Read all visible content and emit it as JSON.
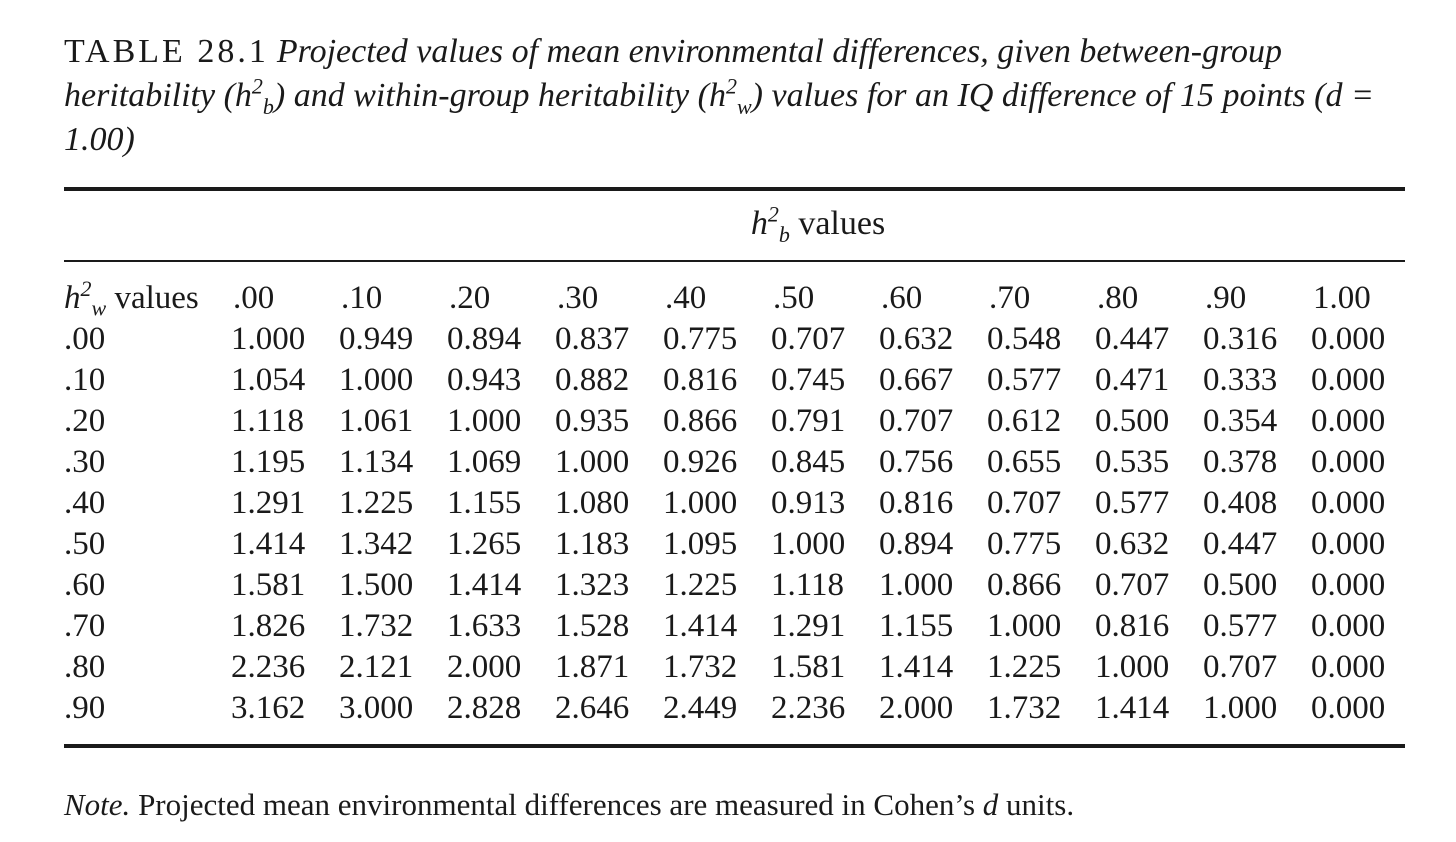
{
  "caption": {
    "label": "TABLE 28.1",
    "text_part1": "Projected values of mean environmental differences, given between-group heritability (",
    "hb_base": "h",
    "hb_sup": "2",
    "hb_sub": "b",
    "text_part2": ") and within-group heritability (",
    "hw_base": "h",
    "hw_sup": "2",
    "hw_sub": "w",
    "text_part3": ") values for an IQ difference of 15 points (d = 1.00)"
  },
  "spanner": {
    "sym_base": "h",
    "sym_sup": "2",
    "sym_sub": "b",
    "text": " values"
  },
  "stub_header": {
    "sym_base": "h",
    "sym_sup": "2",
    "sym_sub": "w",
    "text": " values"
  },
  "columns": [
    ".00",
    ".10",
    ".20",
    ".30",
    ".40",
    ".50",
    ".60",
    ".70",
    ".80",
    ".90",
    "1.00"
  ],
  "rows": [
    {
      "label": ".00",
      "values": [
        "1.000",
        "0.949",
        "0.894",
        "0.837",
        "0.775",
        "0.707",
        "0.632",
        "0.548",
        "0.447",
        "0.316",
        "0.000"
      ]
    },
    {
      "label": ".10",
      "values": [
        "1.054",
        "1.000",
        "0.943",
        "0.882",
        "0.816",
        "0.745",
        "0.667",
        "0.577",
        "0.471",
        "0.333",
        "0.000"
      ]
    },
    {
      "label": ".20",
      "values": [
        "1.118",
        "1.061",
        "1.000",
        "0.935",
        "0.866",
        "0.791",
        "0.707",
        "0.612",
        "0.500",
        "0.354",
        "0.000"
      ]
    },
    {
      "label": ".30",
      "values": [
        "1.195",
        "1.134",
        "1.069",
        "1.000",
        "0.926",
        "0.845",
        "0.756",
        "0.655",
        "0.535",
        "0.378",
        "0.000"
      ]
    },
    {
      "label": ".40",
      "values": [
        "1.291",
        "1.225",
        "1.155",
        "1.080",
        "1.000",
        "0.913",
        "0.816",
        "0.707",
        "0.577",
        "0.408",
        "0.000"
      ]
    },
    {
      "label": ".50",
      "values": [
        "1.414",
        "1.342",
        "1.265",
        "1.183",
        "1.095",
        "1.000",
        "0.894",
        "0.775",
        "0.632",
        "0.447",
        "0.000"
      ]
    },
    {
      "label": ".60",
      "values": [
        "1.581",
        "1.500",
        "1.414",
        "1.323",
        "1.225",
        "1.118",
        "1.000",
        "0.866",
        "0.707",
        "0.500",
        "0.000"
      ]
    },
    {
      "label": ".70",
      "values": [
        "1.826",
        "1.732",
        "1.633",
        "1.528",
        "1.414",
        "1.291",
        "1.155",
        "1.000",
        "0.816",
        "0.577",
        "0.000"
      ]
    },
    {
      "label": ".80",
      "values": [
        "2.236",
        "2.121",
        "2.000",
        "1.871",
        "1.732",
        "1.581",
        "1.414",
        "1.225",
        "1.000",
        "0.707",
        "0.000"
      ]
    },
    {
      "label": ".90",
      "values": [
        "3.162",
        "3.000",
        "2.828",
        "2.646",
        "2.449",
        "2.236",
        "2.000",
        "1.732",
        "1.414",
        "1.000",
        "0.000"
      ]
    }
  ],
  "note": {
    "lead": "Note.",
    "text_part1": " Projected mean environmental differences are measured in Cohen’s ",
    "sym": "d",
    "text_part2": " units."
  }
}
